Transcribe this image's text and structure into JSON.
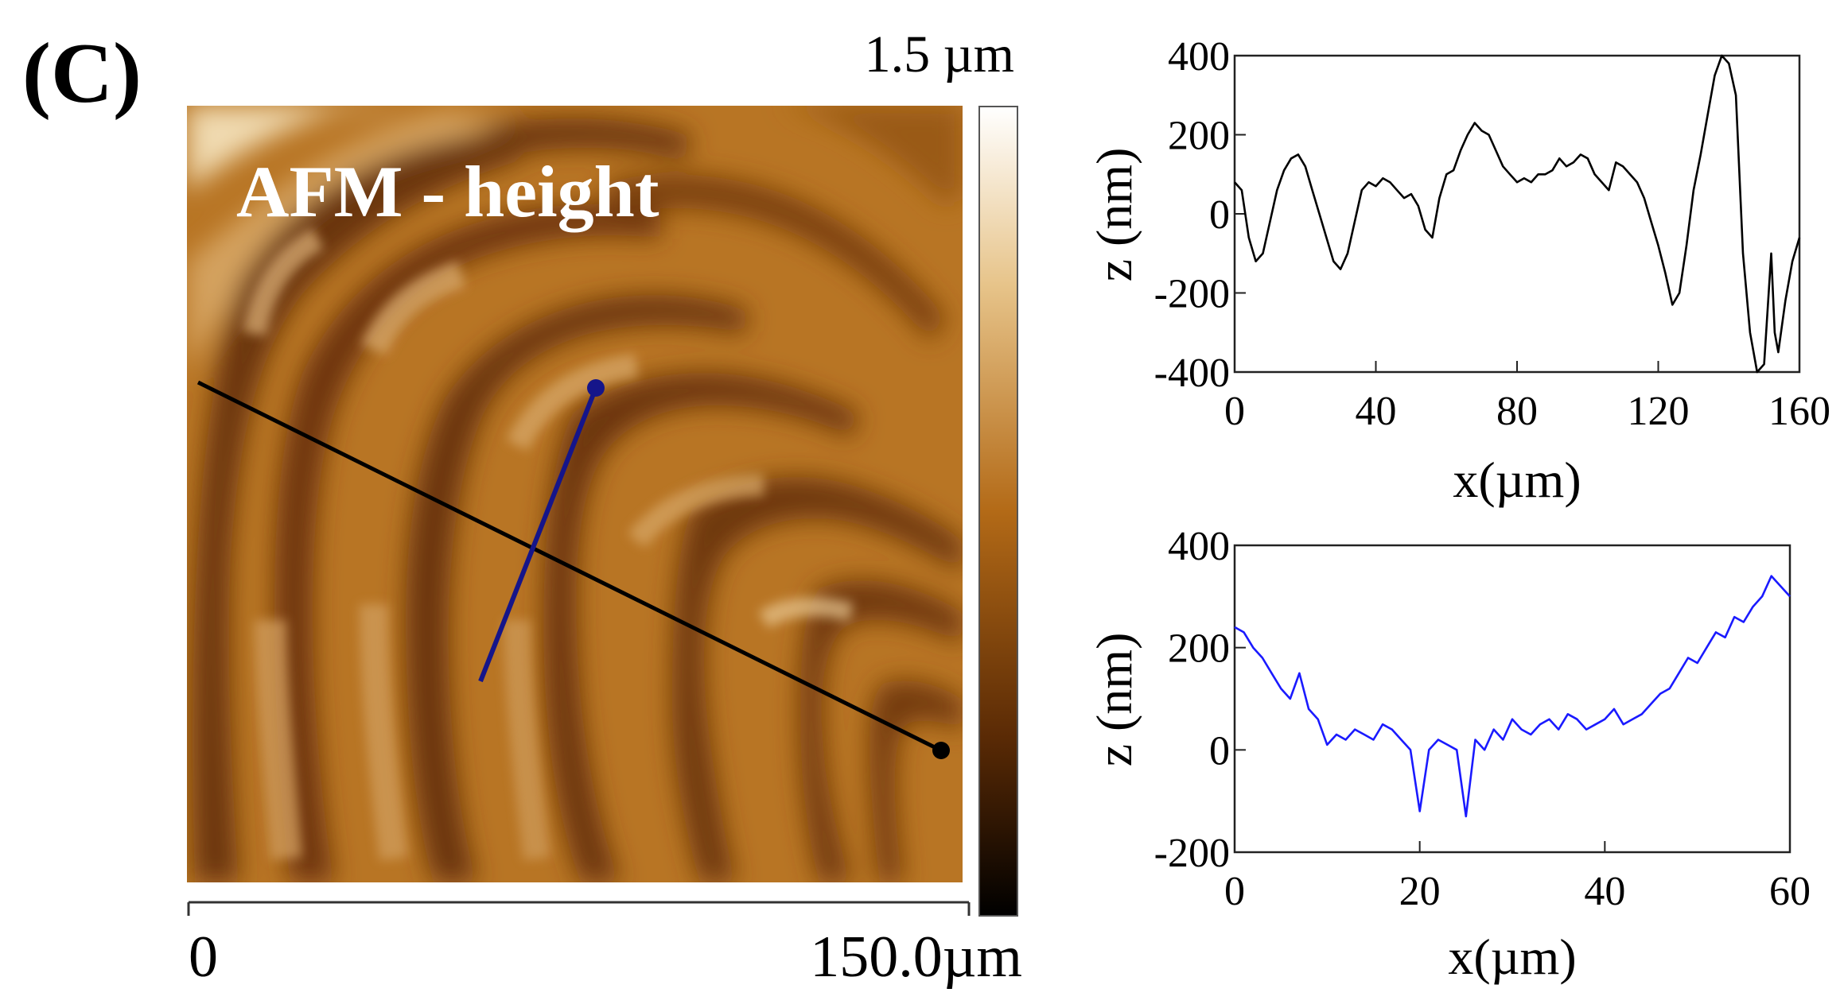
{
  "panel_label": "(C)",
  "afm": {
    "overlay_label": "AFM - height",
    "colorbar_max_label": "1.5 µm",
    "scale_start_label": "0",
    "scale_end_label": "150.0µm",
    "colors": {
      "colorbar_top": "#ffffff",
      "colorbar_upper": "#e7c48a",
      "colorbar_mid": "#b36a17",
      "colorbar_lower": "#5a2a05",
      "colorbar_bottom": "#000000",
      "black_line": "#000000",
      "blue_line": "#15158a"
    }
  },
  "chart_data": [
    {
      "type": "line",
      "xlabel": "x(µm)",
      "ylabel": "z (nm)",
      "xlim": [
        0,
        160
      ],
      "ylim": [
        -400,
        400
      ],
      "xticks": [
        0,
        40,
        80,
        120,
        160
      ],
      "yticks": [
        400,
        200,
        0,
        -200,
        -400
      ],
      "grid": false,
      "series": [
        {
          "color": "#000000",
          "x": [
            0,
            2,
            4,
            6,
            8,
            10,
            12,
            14,
            16,
            18,
            20,
            22,
            24,
            26,
            28,
            30,
            32,
            34,
            36,
            38,
            40,
            42,
            44,
            46,
            48,
            50,
            52,
            54,
            56,
            58,
            60,
            62,
            64,
            66,
            68,
            70,
            72,
            74,
            76,
            78,
            80,
            82,
            84,
            86,
            88,
            90,
            92,
            94,
            96,
            98,
            100,
            102,
            104,
            106,
            108,
            110,
            112,
            114,
            116,
            118,
            120,
            122,
            124,
            126,
            128,
            130,
            132,
            134,
            136,
            138,
            140,
            142,
            144,
            146,
            148,
            150,
            152,
            153,
            154,
            156,
            158,
            160
          ],
          "y": [
            80,
            60,
            -60,
            -120,
            -100,
            -20,
            60,
            110,
            140,
            150,
            120,
            60,
            0,
            -60,
            -120,
            -140,
            -100,
            -20,
            60,
            80,
            70,
            90,
            80,
            60,
            40,
            50,
            20,
            -40,
            -60,
            40,
            100,
            110,
            160,
            200,
            230,
            210,
            200,
            160,
            120,
            100,
            80,
            90,
            80,
            100,
            100,
            110,
            140,
            120,
            130,
            150,
            140,
            100,
            80,
            60,
            130,
            120,
            100,
            80,
            40,
            -20,
            -80,
            -150,
            -230,
            -200,
            -80,
            60,
            150,
            250,
            350,
            400,
            380,
            300,
            -100,
            -300,
            -400,
            -380,
            -100,
            -300,
            -350,
            -220,
            -120,
            -60
          ]
        }
      ]
    },
    {
      "type": "line",
      "xlabel": "x(µm)",
      "ylabel": "z (nm)",
      "xlim": [
        0,
        60
      ],
      "ylim": [
        -200,
        400
      ],
      "xticks": [
        0,
        20,
        40,
        60
      ],
      "yticks": [
        400,
        200,
        0,
        -200
      ],
      "grid": false,
      "series": [
        {
          "color": "#1a1aff",
          "x": [
            0,
            1,
            2,
            3,
            4,
            5,
            6,
            7,
            8,
            9,
            10,
            11,
            12,
            13,
            14,
            15,
            16,
            17,
            18,
            19,
            20,
            21,
            22,
            23,
            24,
            25,
            26,
            27,
            28,
            29,
            30,
            31,
            32,
            33,
            34,
            35,
            36,
            37,
            38,
            39,
            40,
            41,
            42,
            43,
            44,
            45,
            46,
            47,
            48,
            49,
            50,
            51,
            52,
            53,
            54,
            55,
            56,
            57,
            58,
            59,
            60
          ],
          "y": [
            240,
            230,
            200,
            180,
            150,
            120,
            100,
            150,
            80,
            60,
            10,
            30,
            20,
            40,
            30,
            20,
            50,
            40,
            20,
            0,
            -120,
            0,
            20,
            10,
            0,
            -130,
            20,
            0,
            40,
            20,
            60,
            40,
            30,
            50,
            60,
            40,
            70,
            60,
            40,
            50,
            60,
            80,
            50,
            60,
            70,
            90,
            110,
            120,
            150,
            180,
            170,
            200,
            230,
            220,
            260,
            250,
            280,
            300,
            340,
            320,
            300
          ]
        }
      ]
    }
  ]
}
